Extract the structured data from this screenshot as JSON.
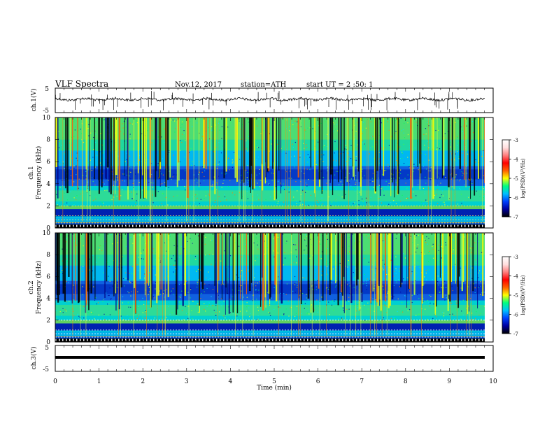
{
  "header": {
    "title": "VLF  Spectra",
    "date": "Nov.12, 2017",
    "station": "station=ATH",
    "start": "start  UT  =   2  :50: 1"
  },
  "chart_data": [
    {
      "type": "line",
      "id": "ch1-waveform",
      "ylabel": "ch.1(V)",
      "yticks": [
        "5",
        "-5"
      ],
      "ylim": [
        -5,
        5
      ],
      "xlim": [
        0,
        10
      ]
    },
    {
      "type": "heatmap",
      "id": "ch1-spectrogram",
      "ylabel": "ch.1",
      "ylabel2": "Frequency  (kHz)",
      "yticks": [
        "0",
        "2",
        "4",
        "6",
        "8",
        "10"
      ],
      "ylim": [
        0,
        10
      ],
      "xlim": [
        0,
        10
      ],
      "colorbar": {
        "label": "log(PSD)(V²/Hz)",
        "ticks": [
          "-3",
          "-4",
          "-5",
          "-6",
          "-7"
        ],
        "range": [
          -7,
          -3
        ],
        "colors": [
          "#000000",
          "#0000a0",
          "#0040ff",
          "#00c0ff",
          "#00ff80",
          "#ffff00",
          "#ff6000",
          "#ff0000",
          "#ff8080",
          "#ffe0e0",
          "#ffffff"
        ]
      }
    },
    {
      "type": "heatmap",
      "id": "ch2-spectrogram",
      "ylabel": "ch.2",
      "ylabel2": "Frequency  (kHz)",
      "yticks": [
        "0",
        "2",
        "4",
        "6",
        "8",
        "10"
      ],
      "ylim": [
        0,
        10
      ],
      "xlim": [
        0,
        10
      ],
      "colorbar": {
        "label": "log(PSD)(V²/Hz)",
        "ticks": [
          "-3",
          "-4",
          "-5",
          "-6",
          "-7"
        ],
        "range": [
          -7,
          -3
        ]
      }
    },
    {
      "type": "line",
      "id": "ch3-waveform",
      "ylabel": "ch.3(V)",
      "yticks": [
        "5",
        "-5"
      ],
      "ylim": [
        -5,
        5
      ],
      "xlim": [
        0,
        10
      ]
    }
  ],
  "xaxis": {
    "label": "Time  (min)",
    "ticks": [
      "0",
      "1",
      "2",
      "3",
      "4",
      "5",
      "6",
      "7",
      "8",
      "9",
      "10"
    ]
  }
}
